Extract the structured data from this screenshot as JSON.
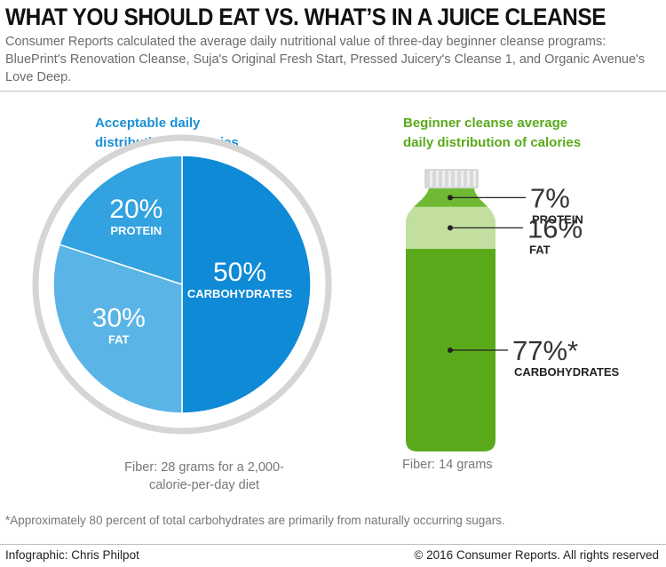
{
  "header": {
    "title": "WHAT YOU SHOULD EAT VS. WHAT’S IN A JUICE CLEANSE",
    "subtitle": "Consumer Reports calculated the average daily nutritional value of three-day beginner cleanse programs: BluePrint's Renovation Cleanse, Suja's Original Fresh Start, Pressed Juicery's Cleanse 1, and Organic Avenue's Love Deep."
  },
  "chart_data": [
    {
      "type": "pie",
      "title": "Acceptable daily distribution of calories",
      "slices": [
        {
          "label": "CARBOHYDRATES",
          "value": 50,
          "display": "50%",
          "color": "#0f8ad6"
        },
        {
          "label": "FAT",
          "value": 30,
          "display": "30%",
          "color": "#5bb4e6"
        },
        {
          "label": "PROTEIN",
          "value": 20,
          "display": "20%",
          "color": "#33a2e0"
        }
      ],
      "note": "Fiber: 28 grams for a 2,000-calorie-per-day diet"
    },
    {
      "type": "bar",
      "title": "Beginner cleanse average daily distribution of calories",
      "segments": [
        {
          "label": "PROTEIN",
          "value": 7,
          "display": "7%",
          "color": "#6fb934"
        },
        {
          "label": "FAT",
          "value": 16,
          "display": "16%",
          "color": "#c3df9f"
        },
        {
          "label": "CARBOHYDRATES",
          "value": 77,
          "display": "77%*",
          "color": "#5aa91a"
        }
      ],
      "note": "Fiber: 14 grams"
    }
  ],
  "footnote": "*Approximately 80 percent of total carbohydrates are primarily from naturally occurring sugars.",
  "footer": {
    "credit": "Infographic: Chris Philpot",
    "copyright": "© 2016 Consumer Reports. All rights reserved"
  }
}
